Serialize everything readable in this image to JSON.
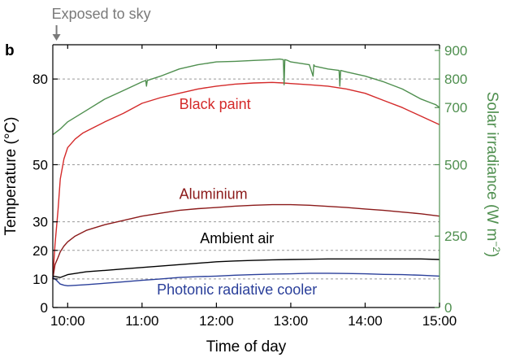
{
  "chart_data": {
    "type": "line",
    "panel_label": "b",
    "annotation": "Exposed to sky",
    "annotation_x": 9.85,
    "xlabel": "Time of day",
    "ylabel_left": "Temperature (°C)",
    "ylabel_right_prefix": "Solar irradiance (W m",
    "ylabel_right_exponent": "−2",
    "ylabel_right_suffix": ")",
    "xlim": [
      9.8,
      15.0
    ],
    "ylim_left": [
      0,
      92
    ],
    "ylim_right": [
      0,
      920
    ],
    "x_ticks": [
      10,
      11,
      12,
      13,
      14,
      15
    ],
    "x_tick_labels": [
      "10:00",
      "11:00",
      "12:00",
      "13:00",
      "14:00",
      "15:00"
    ],
    "y_ticks_left": [
      0,
      10,
      20,
      30,
      50,
      80
    ],
    "y_tick_labels_left": [
      "0",
      "10",
      "20",
      "30",
      "50",
      "80"
    ],
    "y_ticks_right": [
      0,
      250,
      500,
      700,
      800,
      900
    ],
    "y_tick_labels_right": [
      "0",
      "250",
      "500",
      "700",
      "800",
      "900"
    ],
    "dashed_gridlines_left": [
      10,
      20,
      30,
      50,
      80
    ],
    "colors": {
      "black_paint": "#d42a2a",
      "aluminium": "#8b1a1a",
      "ambient_air": "#000000",
      "photonic_cooler": "#2a3f9a",
      "solar": "#4f8f4f",
      "annotation": "#7a7a7a",
      "grid": "#999999"
    },
    "series": [
      {
        "name": "Black paint",
        "axis": "left",
        "color_key": "black_paint",
        "label_at": [
          11.5,
          69.5
        ],
        "x": [
          9.8,
          9.83,
          9.87,
          9.9,
          9.95,
          10.0,
          10.1,
          10.2,
          10.35,
          10.5,
          10.75,
          11.0,
          11.25,
          11.5,
          11.75,
          12.0,
          12.25,
          12.5,
          12.75,
          12.9,
          13.0,
          13.25,
          13.5,
          13.75,
          14.0,
          14.25,
          14.5,
          14.75,
          15.0
        ],
        "y": [
          10,
          22,
          34,
          45,
          52,
          56,
          59,
          61,
          63,
          65,
          68,
          71.5,
          73.5,
          75,
          76.5,
          77.5,
          78.2,
          78.6,
          78.8,
          78.6,
          78.4,
          78,
          77.5,
          76.5,
          75,
          72.5,
          70,
          67,
          64
        ]
      },
      {
        "name": "Aluminium",
        "axis": "left",
        "color_key": "aluminium",
        "label_at": [
          11.5,
          38
        ],
        "x": [
          9.8,
          9.83,
          9.87,
          9.9,
          9.95,
          10.0,
          10.1,
          10.25,
          10.5,
          10.75,
          11.0,
          11.25,
          11.5,
          11.75,
          12.0,
          12.25,
          12.5,
          12.75,
          13.0,
          13.25,
          13.5,
          13.75,
          14.0,
          14.25,
          14.5,
          14.75,
          15.0
        ],
        "y": [
          10,
          15,
          17.5,
          19.5,
          21.5,
          23,
          25,
          27,
          29,
          30.5,
          32,
          33,
          34,
          34.6,
          35,
          35.5,
          35.8,
          36,
          36,
          35.8,
          35.4,
          35,
          34.5,
          34,
          33.4,
          32.8,
          32
        ]
      },
      {
        "name": "Ambient air",
        "axis": "left",
        "color_key": "ambient_air",
        "label_at": [
          11.78,
          22.5
        ],
        "x": [
          9.8,
          9.9,
          10.0,
          10.25,
          10.5,
          10.75,
          11.0,
          11.25,
          11.5,
          11.75,
          12.0,
          12.25,
          12.5,
          12.75,
          13.0,
          13.25,
          13.5,
          13.75,
          14.0,
          14.25,
          14.5,
          14.75,
          15.0
        ],
        "y": [
          11,
          10.5,
          11.5,
          12.5,
          13,
          13.5,
          14,
          14.5,
          15,
          15.5,
          16,
          16.3,
          16.5,
          16.7,
          16.8,
          16.9,
          17,
          17,
          17,
          17,
          17,
          17,
          16.8
        ]
      },
      {
        "name": "Photonic radiative cooler",
        "axis": "left",
        "color_key": "photonic_cooler",
        "label_at": [
          11.2,
          4.5
        ],
        "x": [
          9.8,
          9.85,
          9.9,
          9.95,
          10.0,
          10.25,
          10.5,
          10.75,
          11.0,
          11.25,
          11.5,
          11.75,
          12.0,
          12.25,
          12.5,
          12.75,
          13.0,
          13.25,
          13.5,
          13.75,
          14.0,
          14.25,
          14.5,
          14.75,
          15.0
        ],
        "y": [
          10.5,
          9.5,
          8.2,
          7.8,
          7.6,
          8,
          8.5,
          9,
          9.5,
          10,
          10.5,
          10.8,
          11,
          11.3,
          11.5,
          11.7,
          11.8,
          12,
          12,
          11.9,
          11.8,
          11.6,
          11.5,
          11.3,
          11
        ]
      },
      {
        "name": "Solar irradiance",
        "axis": "right",
        "color_key": "solar",
        "x": [
          9.8,
          9.9,
          10.0,
          10.25,
          10.5,
          10.75,
          11.0,
          11.05,
          11.06,
          11.07,
          11.25,
          11.5,
          11.75,
          12.0,
          12.25,
          12.5,
          12.75,
          12.85,
          12.9,
          12.91,
          12.92,
          12.95,
          13.0,
          13.25,
          13.3,
          13.31,
          13.32,
          13.5,
          13.65,
          13.66,
          13.67,
          13.75,
          14.0,
          14.25,
          14.5,
          14.75,
          14.9,
          14.95,
          15.0
        ],
        "y": [
          605,
          625,
          650,
          690,
          730,
          760,
          790,
          795,
          775,
          795,
          810,
          835,
          850,
          860,
          862,
          865,
          868,
          870,
          868,
          780,
          868,
          866,
          860,
          850,
          810,
          850,
          845,
          835,
          830,
          775,
          830,
          825,
          810,
          790,
          765,
          730,
          715,
          710,
          700
        ]
      }
    ]
  }
}
